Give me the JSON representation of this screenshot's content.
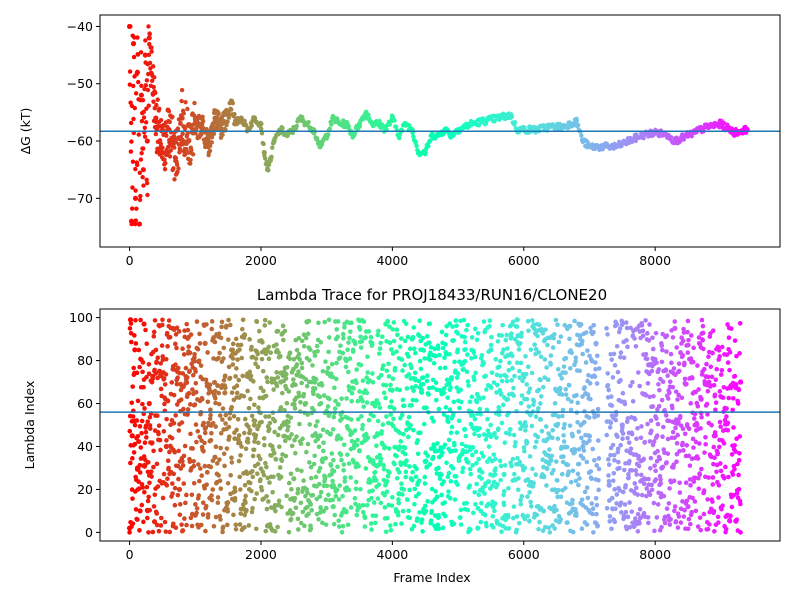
{
  "chart_data": [
    {
      "type": "scatter",
      "title": "",
      "xlabel": "",
      "ylabel": "ΔG (kT)",
      "xlim": [
        -450,
        9900
      ],
      "ylim": [
        -78.5,
        -38
      ],
      "xticks": [
        0,
        2000,
        4000,
        6000,
        8000
      ],
      "yticks": [
        -40,
        -50,
        -60,
        -70
      ],
      "colormap": "rainbow (red at frame 0 to violet at the last frame)",
      "hline": {
        "y": -58.3,
        "color": "#1f77b4"
      },
      "grid": false,
      "series": [
        {
          "x": [
            0,
            30,
            60,
            90,
            120,
            150,
            180,
            210,
            240,
            270,
            300,
            400,
            500,
            600,
            700,
            800,
            900,
            1000,
            1100,
            1200,
            1300,
            1400,
            1500,
            1550,
            1600,
            1700,
            1800,
            1900,
            2000,
            2050,
            2100,
            2150,
            2200,
            2300,
            2400,
            2500,
            2600,
            2700,
            2800,
            2900,
            3000,
            3100,
            3200,
            3300,
            3400,
            3500,
            3600,
            3700,
            3800,
            3900,
            4000,
            4100,
            4200,
            4300,
            4400,
            4500,
            4600,
            4700,
            4800,
            4900,
            5000,
            5200,
            5400,
            5600,
            5800,
            5900,
            6000,
            6100,
            6200,
            6400,
            6600,
            6800,
            6900,
            7000,
            7200,
            7400,
            7600,
            7800,
            8000,
            8200,
            8300,
            8400,
            8600,
            8800,
            9000,
            9200,
            9400
          ],
          "y": [
            -40,
            -74,
            -43,
            -70,
            -48,
            -74.5,
            -52,
            -65,
            -45,
            -60,
            -42,
            -56,
            -62,
            -58,
            -63,
            -56,
            -60,
            -58,
            -57,
            -61,
            -56,
            -58,
            -55,
            -53,
            -57,
            -56,
            -58,
            -56,
            -57,
            -62,
            -65,
            -63,
            -60,
            -58,
            -59,
            -58,
            -56,
            -57,
            -58,
            -61,
            -59,
            -56,
            -57,
            -57,
            -59,
            -57,
            -55,
            -57,
            -57,
            -58,
            -56,
            -59,
            -57,
            -58,
            -62,
            -62,
            -59,
            -59,
            -58,
            -59,
            -58,
            -57,
            -56.5,
            -56,
            -55.5,
            -58,
            -58,
            -58,
            -58,
            -57.5,
            -57.5,
            -56.5,
            -60,
            -61,
            -61,
            -61,
            -60,
            -59,
            -58.5,
            -59,
            -60,
            -59.5,
            -58.5,
            -57.5,
            -57,
            -58.5,
            -58
          ]
        }
      ]
    },
    {
      "type": "scatter",
      "title": "Lambda Trace for PROJ18433/RUN16/CLONE20",
      "xlabel": "Frame Index",
      "ylabel": "Lambda Index",
      "xlim": [
        -450,
        9900
      ],
      "ylim": [
        -4,
        104
      ],
      "xticks": [
        0,
        2000,
        4000,
        6000,
        8000
      ],
      "yticks": [
        0,
        20,
        40,
        60,
        80,
        100
      ],
      "colormap": "rainbow (red at frame 0 to violet at the last frame)",
      "hline": {
        "y": 56,
        "color": "#1f77b4"
      },
      "grid": false,
      "series": [
        {
          "x_range": [
            0,
            9400
          ],
          "y_range": [
            0,
            99
          ],
          "x": [
            0,
            15,
            40,
            80,
            120,
            160,
            220,
            300,
            380,
            460,
            560,
            660,
            760,
            880,
            1000,
            1150,
            1300,
            1450,
            1600,
            1750,
            1900,
            2100,
            2300,
            2500,
            2700,
            2900,
            3100,
            3300,
            3500,
            3700,
            3900,
            4100,
            4300,
            4500,
            4700,
            4900,
            5100,
            5300,
            5500,
            5700,
            5900,
            6100,
            6300,
            6500,
            6700,
            6900,
            7100,
            7300,
            7500,
            7700,
            7900,
            8100,
            8300,
            8500,
            8700,
            8900,
            9100,
            9300
          ],
          "y": [
            2,
            99,
            45,
            85,
            30,
            10,
            97,
            60,
            5,
            75,
            40,
            95,
            20,
            55,
            8,
            88,
            35,
            65,
            15,
            92,
            50,
            3,
            70,
            25,
            98,
            45,
            12,
            80,
            38,
            60,
            97,
            18,
            90,
            33,
            7,
            72,
            48,
            2,
            85,
            27,
            99,
            55,
            10,
            66,
            96,
            40,
            88,
            22,
            50,
            5,
            78,
            30,
            95,
            12,
            62,
            45,
            8,
            70
          ]
        }
      ]
    }
  ]
}
